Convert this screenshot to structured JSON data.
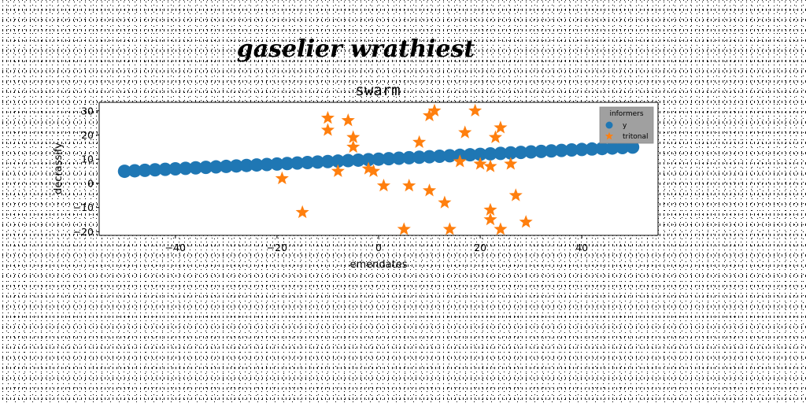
{
  "suptitle": "gaselier wrathiest",
  "chart_data": {
    "type": "scatter",
    "title": "swarm",
    "xlabel": "emendates",
    "ylabel": "decrassify",
    "xlim": [
      -55,
      55
    ],
    "ylim": [
      -21.5,
      33.5
    ],
    "xticks": [
      -40,
      -20,
      0,
      20,
      40
    ],
    "xtick_labels": [
      "−40",
      "−20",
      "0",
      "20",
      "40"
    ],
    "yticks": [
      -20,
      -10,
      0,
      10,
      20,
      30
    ],
    "ytick_labels": [
      "−20",
      "−10",
      "0",
      "10",
      "20",
      "30"
    ],
    "grid": false,
    "legend": {
      "title": "informers",
      "placement": "upper right",
      "background": "#a0a0a0"
    },
    "series": [
      {
        "name": "y",
        "marker": "circle",
        "color": "#1f77b4",
        "x_range": [
          -50,
          50
        ],
        "y_range": [
          5,
          15
        ],
        "count": 51
      },
      {
        "name": "tritonal",
        "marker": "star",
        "color": "#ff7f0e",
        "points": [
          [
            -19,
            2
          ],
          [
            -15,
            -12
          ],
          [
            -10,
            27
          ],
          [
            -10,
            22
          ],
          [
            -8,
            5
          ],
          [
            -6,
            26
          ],
          [
            -5,
            19
          ],
          [
            -5,
            15
          ],
          [
            -2,
            6
          ],
          [
            -1,
            5
          ],
          [
            1,
            -1
          ],
          [
            5,
            -19
          ],
          [
            6,
            -1
          ],
          [
            8,
            17
          ],
          [
            10,
            28
          ],
          [
            10,
            -3
          ],
          [
            11,
            30
          ],
          [
            13,
            -8
          ],
          [
            14,
            -19
          ],
          [
            16,
            9
          ],
          [
            17,
            21
          ],
          [
            19,
            30
          ],
          [
            20,
            8
          ],
          [
            22,
            7
          ],
          [
            22,
            -11
          ],
          [
            22,
            -15
          ],
          [
            23,
            19
          ],
          [
            24,
            23
          ],
          [
            24,
            -19
          ],
          [
            26,
            8
          ],
          [
            27,
            -5
          ],
          [
            29,
            -16
          ]
        ]
      }
    ]
  }
}
